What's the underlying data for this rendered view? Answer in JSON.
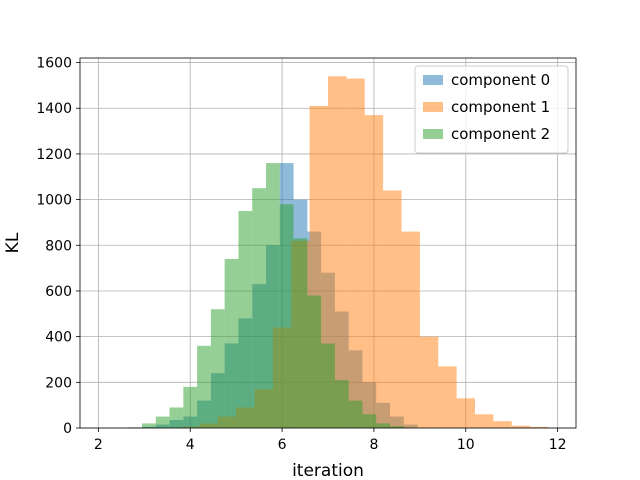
{
  "chart_data": {
    "type": "histogram",
    "title": "",
    "xlabel": "iteration",
    "ylabel": "KL",
    "xlim": [
      1.6,
      12.4
    ],
    "ylim": [
      0,
      1620
    ],
    "xticks": [
      "2",
      "4",
      "6",
      "8",
      "10",
      "12"
    ],
    "yticks": [
      "0",
      "200",
      "400",
      "600",
      "800",
      "1000",
      "1200",
      "1400",
      "1600"
    ],
    "grid": true,
    "legend_position": "top-right",
    "opacity": 0.5,
    "series": [
      {
        "name": "component 0",
        "color": "#1f77b4",
        "bins": [
          [
            2.95,
            3.25,
            5
          ],
          [
            3.25,
            3.55,
            15
          ],
          [
            3.55,
            3.85,
            35
          ],
          [
            3.85,
            4.15,
            50
          ],
          [
            4.15,
            4.45,
            120
          ],
          [
            4.45,
            4.75,
            240
          ],
          [
            4.75,
            5.05,
            370
          ],
          [
            5.05,
            5.35,
            480
          ],
          [
            5.35,
            5.65,
            630
          ],
          [
            5.65,
            5.95,
            800
          ],
          [
            5.95,
            6.25,
            1160
          ],
          [
            6.25,
            6.55,
            1000
          ],
          [
            6.55,
            6.85,
            860
          ],
          [
            6.85,
            7.15,
            680
          ],
          [
            7.15,
            7.45,
            510
          ],
          [
            7.45,
            7.75,
            340
          ],
          [
            7.75,
            8.05,
            200
          ],
          [
            8.05,
            8.35,
            110
          ],
          [
            8.35,
            8.65,
            50
          ],
          [
            8.65,
            8.95,
            15
          ]
        ]
      },
      {
        "name": "component 1",
        "color": "#ff7f0e",
        "bins": [
          [
            3.8,
            4.2,
            5
          ],
          [
            4.2,
            4.6,
            20
          ],
          [
            4.6,
            5.0,
            50
          ],
          [
            5.0,
            5.4,
            90
          ],
          [
            5.4,
            5.8,
            170
          ],
          [
            5.8,
            6.2,
            440
          ],
          [
            6.2,
            6.6,
            820
          ],
          [
            6.6,
            7.0,
            1410
          ],
          [
            7.0,
            7.4,
            1540
          ],
          [
            7.4,
            7.8,
            1530
          ],
          [
            7.8,
            8.2,
            1370
          ],
          [
            8.2,
            8.6,
            1040
          ],
          [
            8.6,
            9.0,
            860
          ],
          [
            9.0,
            9.4,
            400
          ],
          [
            9.4,
            9.8,
            270
          ],
          [
            9.8,
            10.2,
            130
          ],
          [
            10.2,
            10.6,
            60
          ],
          [
            10.6,
            11.0,
            30
          ],
          [
            11.0,
            11.4,
            10
          ],
          [
            11.4,
            11.8,
            5
          ]
        ]
      },
      {
        "name": "component 2",
        "color": "#2ca02c",
        "bins": [
          [
            2.65,
            2.95,
            3
          ],
          [
            2.95,
            3.25,
            20
          ],
          [
            3.25,
            3.55,
            50
          ],
          [
            3.55,
            3.85,
            90
          ],
          [
            3.85,
            4.15,
            180
          ],
          [
            4.15,
            4.45,
            360
          ],
          [
            4.45,
            4.75,
            520
          ],
          [
            4.75,
            5.05,
            740
          ],
          [
            5.05,
            5.35,
            950
          ],
          [
            5.35,
            5.65,
            1050
          ],
          [
            5.65,
            5.95,
            1160
          ],
          [
            5.95,
            6.25,
            980
          ],
          [
            6.25,
            6.55,
            830
          ],
          [
            6.55,
            6.85,
            580
          ],
          [
            6.85,
            7.15,
            370
          ],
          [
            7.15,
            7.45,
            210
          ],
          [
            7.45,
            7.75,
            120
          ],
          [
            7.75,
            8.05,
            60
          ],
          [
            8.05,
            8.35,
            20
          ],
          [
            8.35,
            8.65,
            8
          ]
        ]
      }
    ]
  }
}
